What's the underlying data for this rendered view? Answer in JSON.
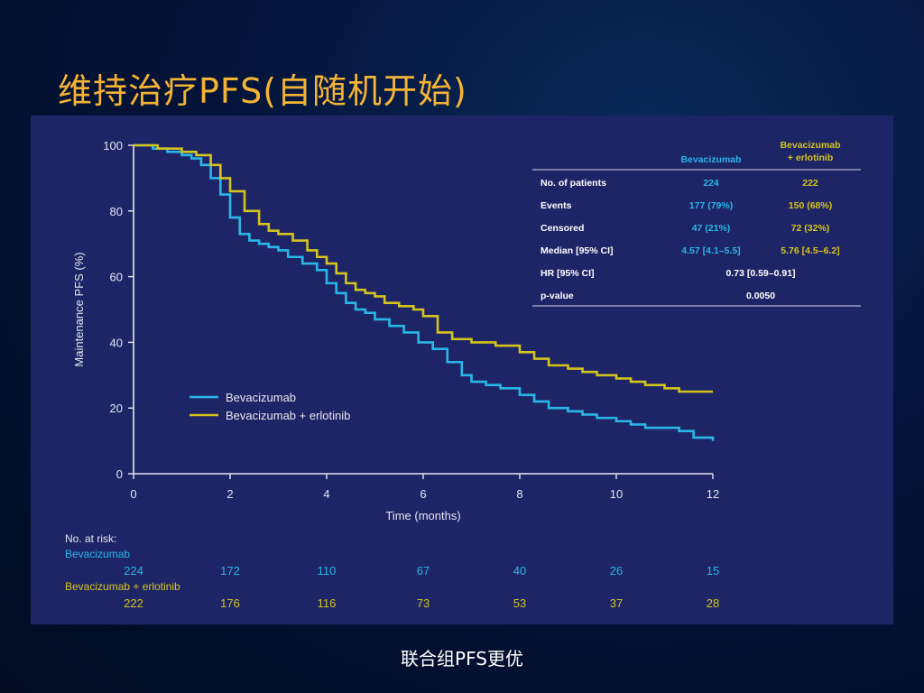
{
  "slide": {
    "title": "维持治疗PFS(自随机开始)",
    "caption": "联合组PFS更优"
  },
  "colors": {
    "bevacizumab": "#29b6e8",
    "combo": "#d4c41c",
    "panel": "#1e2566",
    "title": "#f5b335"
  },
  "chart_data": {
    "type": "line",
    "title": "",
    "xlabel": "Time (months)",
    "ylabel": "Maintenance PFS (%)",
    "xlim": [
      0,
      12
    ],
    "ylim": [
      0,
      100
    ],
    "xticks": [
      0,
      2,
      4,
      6,
      8,
      10,
      12
    ],
    "yticks": [
      0,
      20,
      40,
      60,
      80,
      100
    ],
    "grid": false,
    "legend_position": "bottom-left",
    "series": [
      {
        "name": "Bevacizumab",
        "color": "#29b6e8",
        "x": [
          0,
          0.4,
          0.7,
          1.0,
          1.2,
          1.4,
          1.6,
          1.8,
          2.0,
          2.2,
          2.4,
          2.6,
          2.8,
          3.0,
          3.2,
          3.5,
          3.8,
          4.0,
          4.2,
          4.4,
          4.6,
          4.8,
          5.0,
          5.3,
          5.6,
          5.9,
          6.2,
          6.5,
          6.8,
          7.0,
          7.3,
          7.6,
          8.0,
          8.3,
          8.6,
          9.0,
          9.3,
          9.6,
          10.0,
          10.3,
          10.6,
          11.0,
          11.3,
          11.6,
          12.0
        ],
        "y": [
          100,
          99,
          98,
          97,
          96,
          94,
          90,
          85,
          78,
          73,
          71,
          70,
          69,
          68,
          66,
          64,
          62,
          58,
          55,
          52,
          50,
          49,
          47,
          45,
          43,
          40,
          38,
          34,
          30,
          28,
          27,
          26,
          24,
          22,
          20,
          19,
          18,
          17,
          16,
          15,
          14,
          14,
          13,
          11,
          10
        ]
      },
      {
        "name": "Bevacizumab + erlotinib",
        "color": "#d4c41c",
        "x": [
          0,
          0.5,
          1.0,
          1.3,
          1.6,
          1.8,
          2.0,
          2.3,
          2.6,
          2.8,
          3.0,
          3.3,
          3.6,
          3.8,
          4.0,
          4.2,
          4.4,
          4.6,
          4.8,
          5.0,
          5.2,
          5.5,
          5.8,
          6.0,
          6.3,
          6.6,
          7.0,
          7.5,
          8.0,
          8.3,
          8.6,
          9.0,
          9.3,
          9.6,
          10.0,
          10.3,
          10.6,
          11.0,
          11.3,
          12.0
        ],
        "y": [
          100,
          99,
          98,
          97,
          94,
          90,
          86,
          80,
          76,
          74,
          73,
          71,
          68,
          66,
          64,
          61,
          58,
          56,
          55,
          54,
          52,
          51,
          50,
          48,
          43,
          41,
          40,
          39,
          37,
          35,
          33,
          32,
          31,
          30,
          29,
          28,
          27,
          26,
          25,
          25
        ]
      }
    ],
    "stats_table": {
      "headers": [
        "",
        "Bevacizumab",
        "Bevacizumab\n+ erlotinib"
      ],
      "rows": [
        {
          "label": "No. of patients",
          "bev": "224",
          "combo": "222"
        },
        {
          "label": "Events",
          "bev": "177 (79%)",
          "combo": "150 (68%)"
        },
        {
          "label": "Censored",
          "bev": "47 (21%)",
          "combo": "72 (32%)"
        },
        {
          "label": "Median [95% CI]",
          "bev": "4.57 [4.1–5.5]",
          "combo": "5.76 [4.5–6.2]"
        },
        {
          "label": "HR [95% CI]",
          "both": "0.73 [0.59–0.91]"
        },
        {
          "label": "p-value",
          "both": "0.0050"
        }
      ]
    },
    "at_risk": {
      "title": "No. at risk:",
      "times": [
        0,
        2,
        4,
        6,
        8,
        10,
        12
      ],
      "rows": [
        {
          "name": "Bevacizumab",
          "color": "#29b6e8",
          "values": [
            "224",
            "172",
            "110",
            "67",
            "40",
            "26",
            "15"
          ]
        },
        {
          "name": "Bevacizumab  + erlotinib",
          "color": "#d4c41c",
          "values": [
            "222",
            "176",
            "116",
            "73",
            "53",
            "37",
            "28"
          ]
        }
      ]
    }
  }
}
